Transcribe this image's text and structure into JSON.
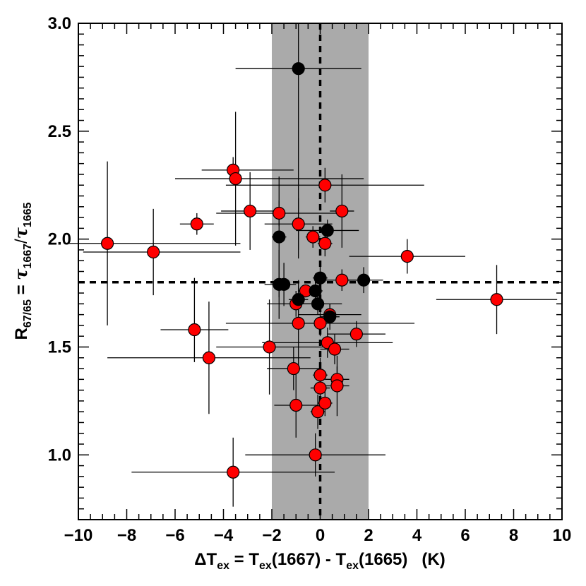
{
  "chart_data": {
    "type": "scatter",
    "xlabel": "ΔT_ex = T_ex(1667) - T_ex(1665)   (K)",
    "ylabel": "R_67/65 = τ_1667/τ_1665",
    "xlabel_parts": {
      "delta": "Δ",
      "T": "T",
      "ex_sub": "ex",
      "eq": " = T",
      "ex_sub2": "ex",
      "mid": "(1667) - T",
      "ex_sub3": "ex",
      "tail": "(1665)   (K)"
    },
    "ylabel_parts": {
      "R": "R",
      "r_sub": "67/65",
      "eq": " = ",
      "tau1": "τ",
      "tau1_sub": "1667",
      "slash": "/",
      "tau2": "τ",
      "tau2_sub": "1665"
    },
    "xlim": [
      -10,
      10
    ],
    "ylim": [
      0.7,
      3.0
    ],
    "xticks": [
      -10,
      -8,
      -6,
      -4,
      -2,
      0,
      2,
      4,
      6,
      8,
      10
    ],
    "xtick_labels": [
      "−10",
      "−8",
      "−6",
      "−4",
      "−2",
      "0",
      "2",
      "4",
      "6",
      "8",
      "10"
    ],
    "yticks": [
      1.0,
      1.5,
      2.0,
      2.5,
      3.0
    ],
    "ytick_labels": [
      "1.0",
      "1.5",
      "2.0",
      "2.5",
      "3.0"
    ],
    "shaded_band_x": [
      -2,
      2
    ],
    "shade_color": "#aaaaaa",
    "reference_lines": {
      "x": 0,
      "y": 1.8
    },
    "marker_colors": {
      "red": "#ff0000",
      "black": "#000000"
    },
    "series": [
      {
        "name": "red",
        "points": [
          {
            "x": -8.8,
            "y": 1.98,
            "xerr": [
              1.6,
              5.5
            ],
            "yerr": [
              0.38,
              0.38
            ]
          },
          {
            "x": -6.9,
            "y": 1.94,
            "xerr": [
              2.9,
              3.6
            ],
            "yerr": [
              0.2,
              0.2
            ]
          },
          {
            "x": -5.1,
            "y": 2.07,
            "xerr": [
              0.7,
              0.7
            ],
            "yerr": [
              0.05,
              0.05
            ]
          },
          {
            "x": -5.2,
            "y": 1.58,
            "xerr": [
              1.4,
              1.4
            ],
            "yerr": [
              0.15,
              0.24
            ]
          },
          {
            "x": -4.6,
            "y": 1.45,
            "xerr": [
              4.2,
              4.2
            ],
            "yerr": [
              0.26,
              0.26
            ]
          },
          {
            "x": -3.6,
            "y": 2.32,
            "xerr": [
              1.3,
              2.5
            ],
            "yerr": [
              0.06,
              0.06
            ]
          },
          {
            "x": -3.5,
            "y": 2.28,
            "xerr": [
              2.5,
              5.3
            ],
            "yerr": [
              0.31,
              0.31
            ]
          },
          {
            "x": -3.6,
            "y": 0.92,
            "xerr": [
              4.2,
              4.2
            ],
            "yerr": [
              0.16,
              0.16
            ]
          },
          {
            "x": -2.9,
            "y": 2.13,
            "xerr": [
              1.2,
              1.2
            ],
            "yerr": [
              0.18,
              0.18
            ]
          },
          {
            "x": -2.1,
            "y": 1.5,
            "xerr": [
              2.2,
              2.2
            ],
            "yerr": [
              0.22,
              0.22
            ]
          },
          {
            "x": -1.7,
            "y": 2.12,
            "xerr": [
              2.6,
              2.6
            ],
            "yerr": [
              0.06,
              0.06
            ]
          },
          {
            "x": -1.1,
            "y": 1.4,
            "xerr": [
              1.1,
              1.1
            ],
            "yerr": [
              0.1,
              0.1
            ]
          },
          {
            "x": -1.0,
            "y": 1.23,
            "xerr": [
              0.9,
              0.9
            ],
            "yerr": [
              0.15,
              0.15
            ]
          },
          {
            "x": -1.0,
            "y": 1.7,
            "xerr": [
              1.2,
              1.2
            ],
            "yerr": [
              0.06,
              0.06
            ]
          },
          {
            "x": -0.9,
            "y": 2.07,
            "xerr": [
              1.4,
              1.4
            ],
            "yerr": [
              0.12,
              0.12
            ]
          },
          {
            "x": -0.9,
            "y": 1.61,
            "xerr": [
              1.1,
              1.1
            ],
            "yerr": [
              0.2,
              0.2
            ]
          },
          {
            "x": -0.6,
            "y": 1.76,
            "xerr": [
              0.3,
              0.3
            ],
            "yerr": [
              0.03,
              0.03
            ]
          },
          {
            "x": -0.3,
            "y": 2.01,
            "xerr": [
              0.3,
              0.3
            ],
            "yerr": [
              0.05,
              0.05
            ]
          },
          {
            "x": -0.2,
            "y": 1.0,
            "xerr": [
              2.9,
              2.9
            ],
            "yerr": [
              0.1,
              0.1
            ]
          },
          {
            "x": -0.1,
            "y": 1.2,
            "xerr": [
              0.3,
              0.3
            ],
            "yerr": [
              0.08,
              0.08
            ]
          },
          {
            "x": 0.0,
            "y": 1.37,
            "xerr": [
              0.3,
              0.3
            ],
            "yerr": [
              0.08,
              0.08
            ]
          },
          {
            "x": 0.0,
            "y": 1.31,
            "xerr": [
              0.4,
              0.4
            ],
            "yerr": [
              0.09,
              0.09
            ]
          },
          {
            "x": 0.0,
            "y": 1.61,
            "xerr": [
              3.9,
              3.9
            ],
            "yerr": [
              0.06,
              0.06
            ]
          },
          {
            "x": 0.2,
            "y": 1.24,
            "xerr": [
              0.3,
              0.3
            ],
            "yerr": [
              0.06,
              0.06
            ]
          },
          {
            "x": 0.2,
            "y": 1.98,
            "xerr": [
              0.3,
              0.3
            ],
            "yerr": [
              0.06,
              0.06
            ]
          },
          {
            "x": 0.2,
            "y": 2.25,
            "xerr": [
              4.1,
              4.1
            ],
            "yerr": [
              0.08,
              0.08
            ]
          },
          {
            "x": 0.3,
            "y": 1.52,
            "xerr": [
              2.7,
              2.7
            ],
            "yerr": [
              0.07,
              0.07
            ]
          },
          {
            "x": 0.4,
            "y": 1.65,
            "xerr": [
              1.3,
              1.3
            ],
            "yerr": [
              0.05,
              0.05
            ]
          },
          {
            "x": 0.6,
            "y": 1.49,
            "xerr": [
              0.6,
              0.6
            ],
            "yerr": [
              0.07,
              0.07
            ]
          },
          {
            "x": 0.7,
            "y": 1.35,
            "xerr": [
              0.5,
              0.5
            ],
            "yerr": [
              0.06,
              0.06
            ]
          },
          {
            "x": 0.7,
            "y": 1.32,
            "xerr": [
              0.5,
              0.5
            ],
            "yerr": [
              0.14,
              0.14
            ]
          },
          {
            "x": 0.9,
            "y": 1.81,
            "xerr": [
              1.0,
              1.0
            ],
            "yerr": [
              0.05,
              0.05
            ]
          },
          {
            "x": 0.9,
            "y": 2.13,
            "xerr": [
              0.5,
              0.5
            ],
            "yerr": [
              0.17,
              0.17
            ]
          },
          {
            "x": 1.5,
            "y": 1.56,
            "xerr": [
              1.2,
              1.2
            ],
            "yerr": [
              0.06,
              0.06
            ]
          },
          {
            "x": 3.6,
            "y": 1.92,
            "xerr": [
              2.4,
              2.4
            ],
            "yerr": [
              0.08,
              0.08
            ]
          },
          {
            "x": 7.3,
            "y": 1.72,
            "xerr": [
              2.5,
              2.5
            ],
            "yerr": [
              0.16,
              0.16
            ]
          }
        ]
      },
      {
        "name": "black",
        "points": [
          {
            "x": -0.9,
            "y": 2.79,
            "xerr": [
              2.6,
              2.6
            ],
            "yerr": [
              0.88,
              0.21
            ]
          },
          {
            "x": -1.7,
            "y": 2.01,
            "xerr": [
              0.3,
              0.3
            ],
            "yerr": [
              0.28,
              0.28
            ]
          },
          {
            "x": -1.7,
            "y": 1.79,
            "xerr": [
              0.6,
              0.6
            ],
            "yerr": [
              0.16,
              0.16
            ]
          },
          {
            "x": -1.5,
            "y": 1.79,
            "xerr": [
              0.5,
              0.5
            ],
            "yerr": [
              0.1,
              0.1
            ]
          },
          {
            "x": -0.9,
            "y": 1.72,
            "xerr": [
              0.4,
              0.4
            ],
            "yerr": [
              0.06,
              0.06
            ]
          },
          {
            "x": -0.2,
            "y": 1.76,
            "xerr": [
              0.3,
              0.3
            ],
            "yerr": [
              0.08,
              0.08
            ]
          },
          {
            "x": -0.1,
            "y": 1.7,
            "xerr": [
              1.0,
              1.0
            ],
            "yerr": [
              0.05,
              0.05
            ]
          },
          {
            "x": 0.0,
            "y": 1.82,
            "xerr": [
              0.3,
              0.3
            ],
            "yerr": [
              0.06,
              0.06
            ]
          },
          {
            "x": 0.3,
            "y": 2.04,
            "xerr": [
              1.3,
              1.3
            ],
            "yerr": [
              0.05,
              0.05
            ]
          },
          {
            "x": 0.4,
            "y": 1.64,
            "xerr": [
              0.4,
              0.4
            ],
            "yerr": [
              0.06,
              0.06
            ]
          },
          {
            "x": 1.8,
            "y": 1.81,
            "xerr": [
              0.8,
              0.8
            ],
            "yerr": [
              0.06,
              0.06
            ]
          }
        ]
      }
    ]
  }
}
